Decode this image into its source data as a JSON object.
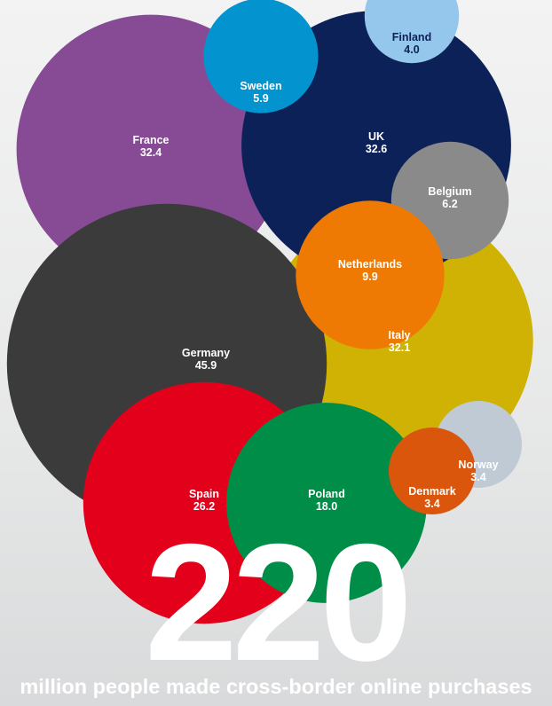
{
  "headline_number": "220",
  "caption": "million people made cross-border online purchases",
  "chart_data": {
    "type": "bubble",
    "title": "",
    "series": [
      {
        "label": "France",
        "value": 32.4,
        "color": "#864b94",
        "label_color": "#ffffff"
      },
      {
        "label": "UK",
        "value": 32.6,
        "color": "#0b2157",
        "label_color": "#ffffff"
      },
      {
        "label": "Sweden",
        "value": 5.9,
        "color": "#0394cf",
        "label_color": "#ffffff"
      },
      {
        "label": "Finland",
        "value": 4.0,
        "color": "#95c7ec",
        "label_color": "#0b2157"
      },
      {
        "label": "Belgium",
        "value": 6.2,
        "color": "#8a8a8a",
        "label_color": "#ffffff"
      },
      {
        "label": "Italy",
        "value": 32.1,
        "color": "#cfb203",
        "label_color": "#ffffff"
      },
      {
        "label": "Germany",
        "value": 45.9,
        "color": "#3b3b3b",
        "label_color": "#ffffff"
      },
      {
        "label": "Spain",
        "value": 26.2,
        "color": "#e2001a",
        "label_color": "#ffffff"
      },
      {
        "label": "Poland",
        "value": 18.0,
        "color": "#008d48",
        "label_color": "#ffffff"
      },
      {
        "label": "Netherlands",
        "value": 9.9,
        "color": "#ee7a03",
        "label_color": "#ffffff"
      },
      {
        "label": "Norway",
        "value": 3.4,
        "color": "#bfcad5",
        "label_color": "#ffffff"
      },
      {
        "label": "Denmark",
        "value": 3.4,
        "color": "#d9560c",
        "label_color": "#ffffff"
      }
    ]
  }
}
